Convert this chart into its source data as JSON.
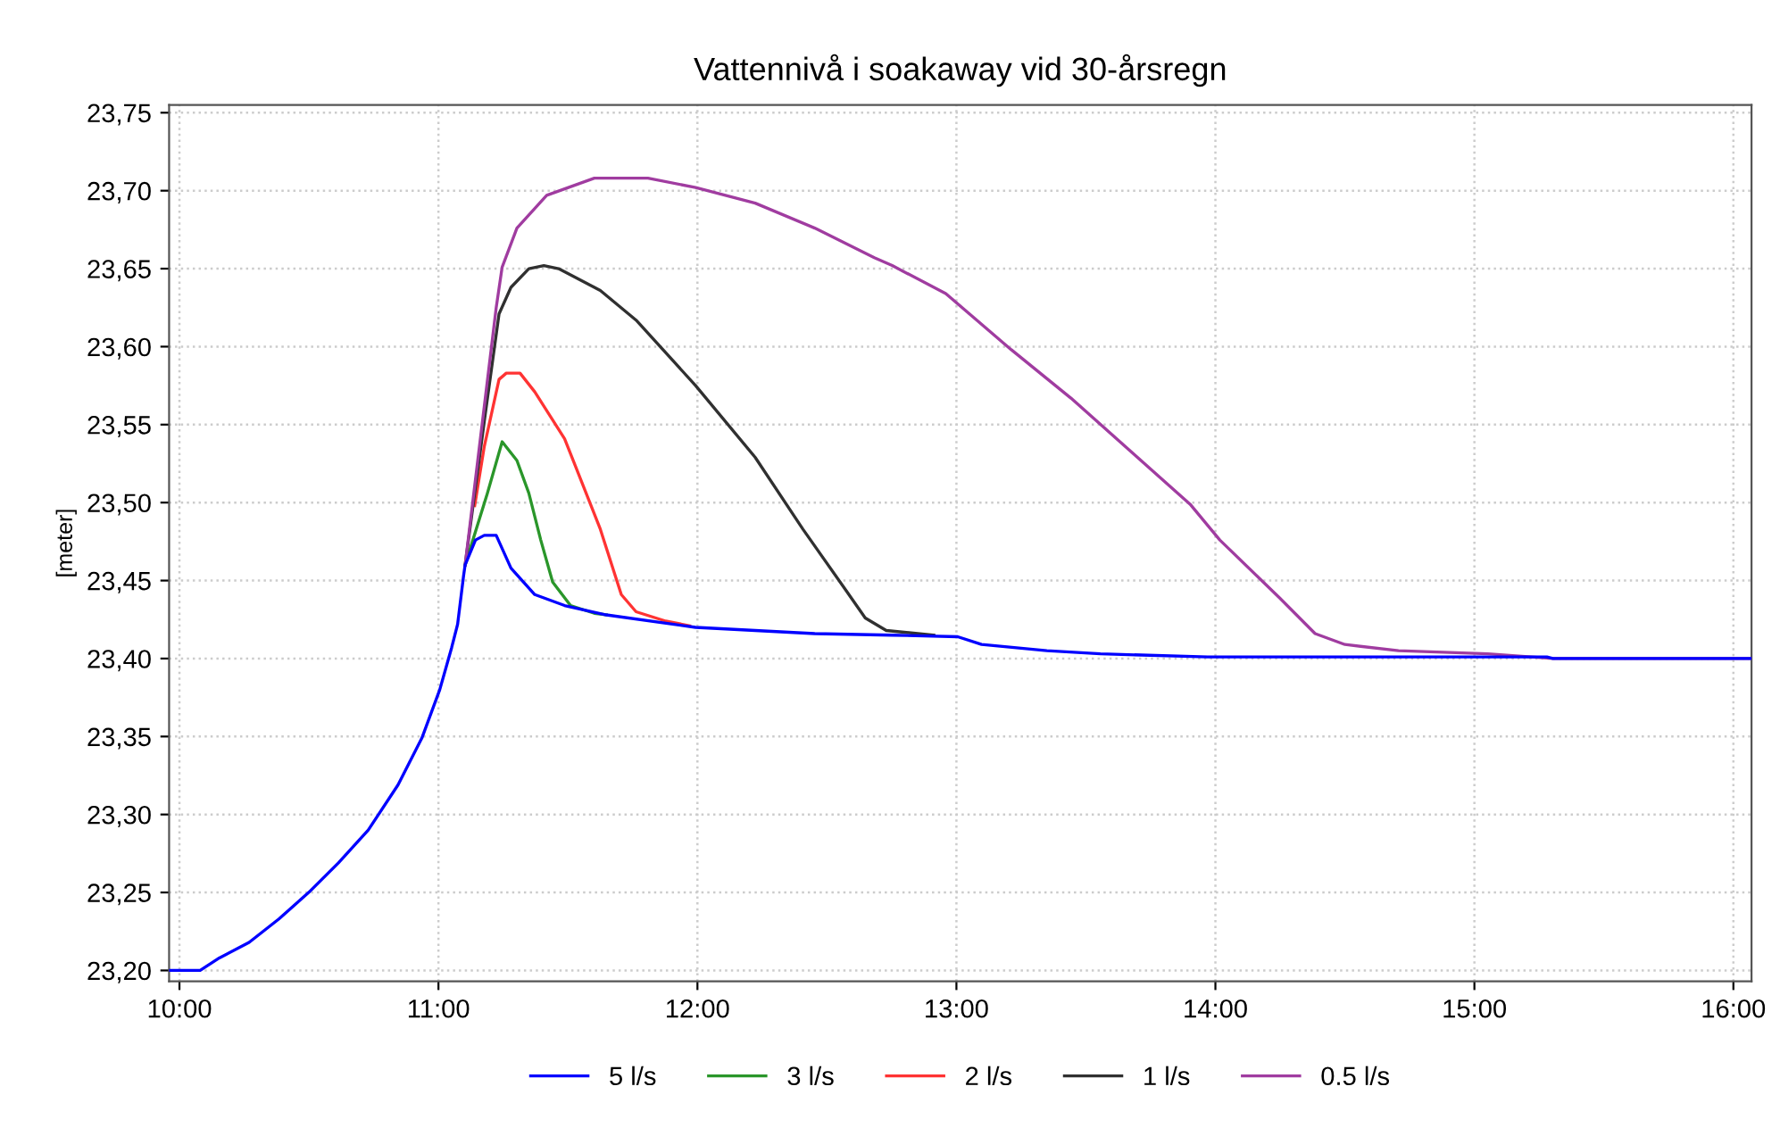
{
  "chart_data": {
    "type": "line",
    "title": "Vattennivå i soakaway vid 30-årsregn",
    "ylabel": "[meter]",
    "xlim": [
      9.96,
      16.07
    ],
    "ylim": [
      23.193,
      23.755
    ],
    "xticks": [
      {
        "value": 10,
        "label": "10:00"
      },
      {
        "value": 11,
        "label": "11:00"
      },
      {
        "value": 12,
        "label": "12:00"
      },
      {
        "value": 13,
        "label": "13:00"
      },
      {
        "value": 14,
        "label": "14:00"
      },
      {
        "value": 15,
        "label": "15:00"
      },
      {
        "value": 16,
        "label": "16:00"
      }
    ],
    "yticks": [
      {
        "value": 23.2,
        "label": "23,20"
      },
      {
        "value": 23.25,
        "label": "23,25"
      },
      {
        "value": 23.3,
        "label": "23,30"
      },
      {
        "value": 23.35,
        "label": "23,35"
      },
      {
        "value": 23.4,
        "label": "23,40"
      },
      {
        "value": 23.45,
        "label": "23,45"
      },
      {
        "value": 23.5,
        "label": "23,50"
      },
      {
        "value": 23.55,
        "label": "23,55"
      },
      {
        "value": 23.6,
        "label": "23,60"
      },
      {
        "value": 23.65,
        "label": "23,65"
      },
      {
        "value": 23.7,
        "label": "23,70"
      },
      {
        "value": 23.75,
        "label": "23,75"
      }
    ],
    "grid": true,
    "legend": "bottom",
    "marker": "none",
    "line_style": "solid",
    "series": [
      {
        "name": "5 l/s",
        "color": "#0000ff",
        "x": [
          9.96,
          10.08,
          10.154,
          10.269,
          10.384,
          10.499,
          10.614,
          10.729,
          10.844,
          10.936,
          11.005,
          11.051,
          11.074,
          11.097,
          11.103,
          11.143,
          11.177,
          11.223,
          11.28,
          11.372,
          11.487,
          11.648,
          11.993,
          12.453,
          12.752,
          13.005,
          13.097,
          13.349,
          13.556,
          13.97,
          15.28,
          15.303,
          16.07
        ],
        "values": [
          23.2,
          23.2,
          23.208,
          23.218,
          23.233,
          23.25,
          23.269,
          23.29,
          23.319,
          23.349,
          23.38,
          23.407,
          23.422,
          23.453,
          23.46,
          23.476,
          23.479,
          23.479,
          23.458,
          23.441,
          23.434,
          23.428,
          23.42,
          23.416,
          23.415,
          23.414,
          23.409,
          23.405,
          23.403,
          23.401,
          23.401,
          23.4,
          23.4
        ]
      },
      {
        "name": "3 l/s",
        "color": "#2a962a",
        "x": [
          11.103,
          11.189,
          11.246,
          11.303,
          11.349,
          11.395,
          11.441,
          11.51,
          11.602,
          11.648
        ],
        "values": [
          23.46,
          23.506,
          23.539,
          23.527,
          23.506,
          23.476,
          23.449,
          23.434,
          23.429,
          23.428
        ]
      },
      {
        "name": "2 l/s",
        "color": "#ff3333",
        "x": [
          11.14,
          11.177,
          11.234,
          11.262,
          11.315,
          11.372,
          11.487,
          11.625,
          11.706,
          11.763,
          11.878,
          11.97
        ],
        "values": [
          23.498,
          23.536,
          23.579,
          23.583,
          23.583,
          23.571,
          23.541,
          23.483,
          23.441,
          23.43,
          23.424,
          23.421
        ]
      },
      {
        "name": "1 l/s",
        "color": "#303030",
        "x": [
          11.103,
          11.177,
          11.234,
          11.28,
          11.349,
          11.407,
          11.464,
          11.625,
          11.763,
          11.993,
          12.223,
          12.407,
          12.568,
          12.648,
          12.729,
          12.913
        ],
        "values": [
          23.46,
          23.552,
          23.621,
          23.638,
          23.65,
          23.652,
          23.65,
          23.636,
          23.617,
          23.575,
          23.529,
          23.483,
          23.445,
          23.426,
          23.418,
          23.415
        ]
      },
      {
        "name": "0.5 l/s",
        "color": "#a03ca0",
        "x": [
          11.103,
          11.223,
          11.246,
          11.303,
          11.418,
          11.602,
          11.809,
          11.993,
          12.223,
          12.453,
          12.683,
          12.752,
          12.959,
          13.212,
          13.442,
          13.672,
          13.902,
          14.017,
          14.247,
          14.385,
          14.5,
          14.707,
          15.052,
          15.303,
          16.07
        ],
        "values": [
          23.46,
          23.625,
          23.651,
          23.676,
          23.697,
          23.708,
          23.708,
          23.702,
          23.692,
          23.676,
          23.657,
          23.652,
          23.634,
          23.598,
          23.567,
          23.533,
          23.499,
          23.476,
          23.439,
          23.416,
          23.409,
          23.405,
          23.403,
          23.4,
          23.4
        ]
      }
    ]
  }
}
